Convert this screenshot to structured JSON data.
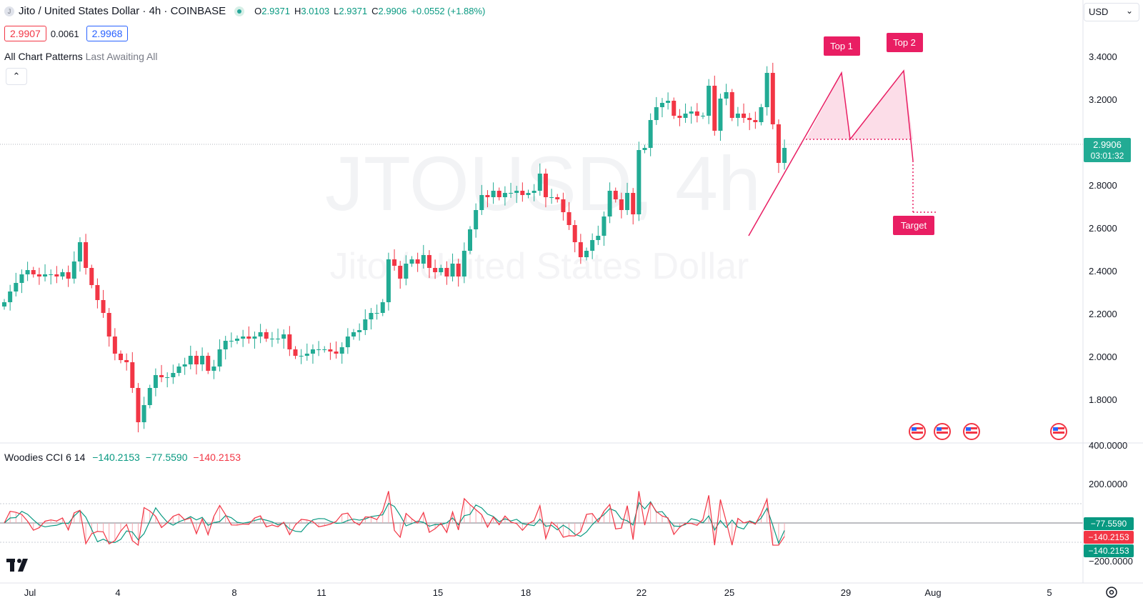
{
  "header": {
    "symbol_icon": "J",
    "title": "Jito / United States Dollar · 4h · COINBASE",
    "ohlc": {
      "o_label": "O",
      "o": "2.9371",
      "h_label": "H",
      "h": "3.0103",
      "l_label": "L",
      "l": "2.9371",
      "c_label": "C",
      "c": "2.9906",
      "change": "+0.0552 (+1.88%)"
    },
    "bid": "2.9907",
    "spread": "0.0061",
    "ask": "2.9968",
    "indicator_label": "All Chart Patterns",
    "indicator_params": "Last Awaiting All",
    "collapse_icon": "chevron-up-icon"
  },
  "currency": {
    "selected": "USD"
  },
  "watermark": {
    "line1": "JTOUSD, 4h",
    "line2": "Jito / United States Dollar"
  },
  "pattern": {
    "top1": "Top 1",
    "top2": "Top 2",
    "target": "Target"
  },
  "price_tag": {
    "price": "2.9906",
    "countdown": "03:01:32"
  },
  "cci": {
    "title": "Woodies CCI",
    "params": "6 14",
    "v1": "−140.2153",
    "v2": "−77.5590",
    "v3": "−140.2153",
    "tag_a": "−77.5590",
    "tag_b": "−140.2153",
    "tag_c": "−140.2153",
    "axis_labels": [
      "400.0000",
      "200.0000",
      "−200.0000"
    ]
  },
  "time_axis": [
    "Jul",
    "4",
    "8",
    "11",
    "15",
    "18",
    "22",
    "25",
    "29",
    "Aug",
    "5"
  ],
  "colors": {
    "up": "#22ab94",
    "down": "#f23645",
    "pattern": "#e91e63",
    "cci_fast": "#f23645",
    "cci_slow": "#089981"
  },
  "chart_data": {
    "type": "candlestick",
    "symbol": "JTOUSD",
    "interval": "4h",
    "y_axis_labels": [
      "3.4000",
      "3.2000",
      "2.8000",
      "2.6000",
      "2.4000",
      "2.2000",
      "2.0000",
      "1.8000"
    ],
    "ylim": [
      1.65,
      3.5
    ],
    "x_ticks": [
      "Jul",
      "4",
      "8",
      "11",
      "15",
      "18",
      "22",
      "25",
      "29",
      "Aug",
      "5"
    ],
    "approx_closes": [
      2.27,
      2.32,
      2.36,
      2.4,
      2.42,
      2.4,
      2.39,
      2.4,
      2.4,
      2.39,
      2.41,
      2.38,
      2.46,
      2.55,
      2.43,
      2.35,
      2.28,
      2.22,
      2.11,
      2.03,
      2.0,
      1.99,
      1.87,
      1.71,
      1.79,
      1.87,
      1.93,
      1.92,
      1.92,
      1.94,
      1.97,
      1.98,
      2.02,
      1.98,
      2.02,
      1.95,
      1.97,
      2.05,
      2.09,
      2.09,
      2.1,
      2.11,
      2.1,
      2.11,
      2.13,
      2.1,
      2.1,
      2.1,
      2.12,
      2.05,
      2.02,
      2.02,
      2.03,
      2.05,
      2.05,
      2.05,
      2.04,
      2.03,
      2.06,
      2.11,
      2.13,
      2.14,
      2.19,
      2.22,
      2.22,
      2.27,
      2.47,
      2.44,
      2.38,
      2.45,
      2.47,
      2.45,
      2.49,
      2.43,
      2.41,
      2.43,
      2.39,
      2.45,
      2.39,
      2.51,
      2.61,
      2.7,
      2.77,
      2.76,
      2.79,
      2.76,
      2.78,
      2.78,
      2.79,
      2.77,
      2.78,
      2.79,
      2.87,
      2.76,
      2.76,
      2.75,
      2.69,
      2.63,
      2.55,
      2.48,
      2.51,
      2.56,
      2.58,
      2.67,
      2.79,
      2.75,
      2.7,
      2.78,
      2.68,
      2.98,
      2.99,
      3.12,
      3.18,
      3.2,
      3.21,
      3.14,
      3.13,
      3.15,
      3.16,
      3.14,
      3.14,
      3.28,
      3.07,
      3.22,
      3.25,
      3.13,
      3.15,
      3.13,
      3.12,
      3.11,
      3.18,
      3.34,
      3.1,
      2.92,
      2.99
    ],
    "pattern": {
      "name": "Double Top",
      "top1": 3.34,
      "top2": 3.35,
      "neckline": 3.03,
      "target": 2.69
    },
    "current_price": 2.9906,
    "cci_axis_labels": [
      "400.0000",
      "200.0000",
      "-200.0000"
    ],
    "cci_last": {
      "fast": -140.2153,
      "slow": -77.559
    }
  }
}
